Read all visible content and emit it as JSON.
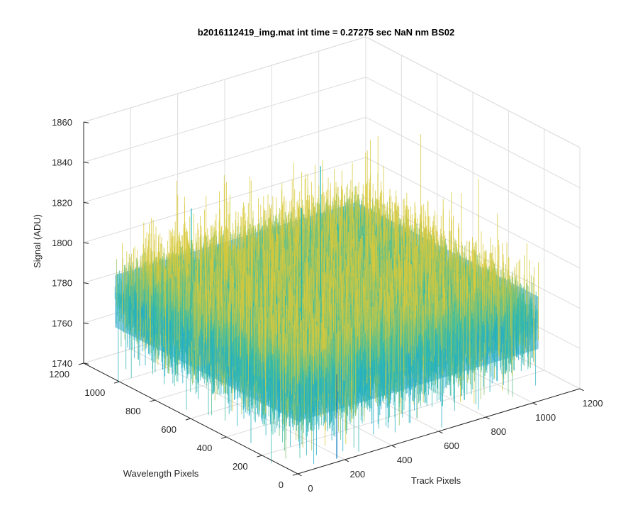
{
  "chart_data": {
    "type": "surface",
    "title": "b2016112419_img.mat int time = 0.27275 sec  NaN nm BS02",
    "xlabel": "Track Pixels",
    "ylabel": "Wavelength Pixels",
    "zlabel": "Signal (ADU)",
    "xlim": [
      0,
      1200
    ],
    "ylim": [
      0,
      1200
    ],
    "zlim": [
      1740,
      1860
    ],
    "x_ticks": [
      0,
      200,
      400,
      600,
      800,
      1000,
      1200
    ],
    "y_ticks": [
      0,
      200,
      400,
      600,
      800,
      1000,
      1200
    ],
    "z_ticks": [
      1740,
      1760,
      1780,
      1800,
      1820,
      1840,
      1860
    ],
    "x_tick_labels": [
      "0",
      "200",
      "400",
      "600",
      "800",
      "1000",
      "1200"
    ],
    "y_tick_labels": [
      "0",
      "200",
      "400",
      "600",
      "800",
      "1000",
      "1200"
    ],
    "z_tick_labels": [
      "1740",
      "1760",
      "1780",
      "1800",
      "1820",
      "1840",
      "1860"
    ],
    "surface_extent": {
      "x": [
        0,
        1024
      ],
      "y": [
        0,
        1024
      ]
    },
    "surface_mean": 1780,
    "surface_typical_range": [
      1760,
      1800
    ],
    "surface_min_spike": 1738,
    "surface_max_spike": 1845,
    "colormap": "parula",
    "grid": true,
    "box": true,
    "colors": {
      "low": "#0072bd",
      "mid": "#1fb7b0",
      "high": "#d9c93b",
      "grid": "#dcdcdc",
      "axis": "#262626"
    }
  }
}
